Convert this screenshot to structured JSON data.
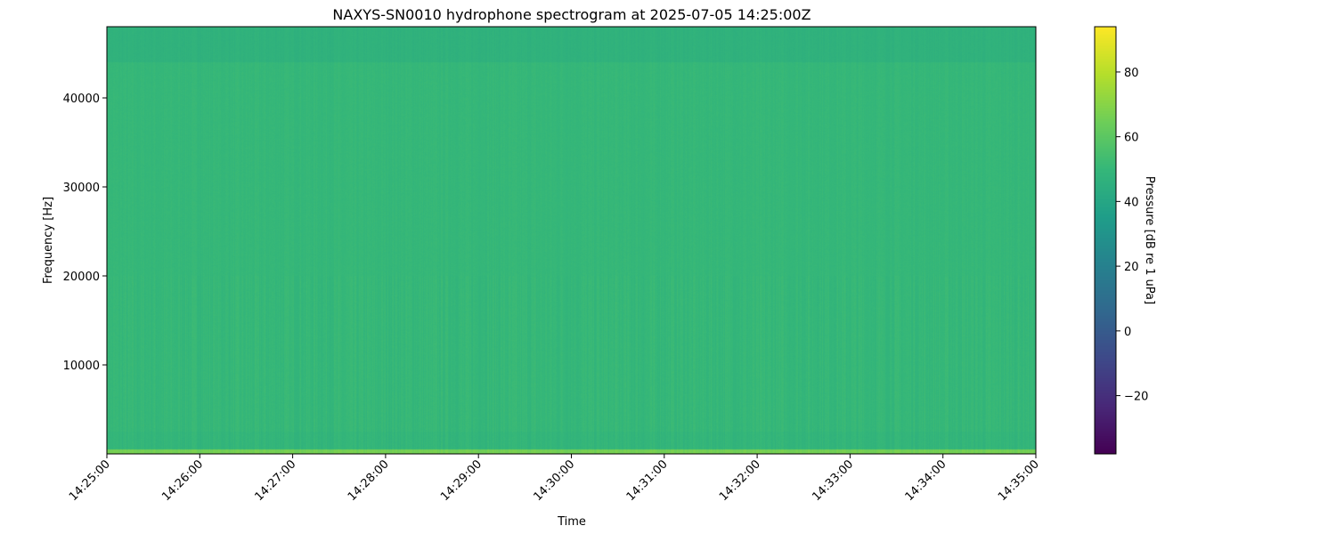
{
  "chart_data": {
    "type": "heatmap",
    "title": "NAXYS-SN0010 hydrophone spectrogram at 2025-07-05 14:25:00Z",
    "xlabel": "Time",
    "ylabel": "Frequency [Hz]",
    "x_ticks": [
      "14:25:00",
      "14:26:00",
      "14:27:00",
      "14:28:00",
      "14:29:00",
      "14:30:00",
      "14:31:00",
      "14:32:00",
      "14:33:00",
      "14:34:00",
      "14:35:00"
    ],
    "y_ticks": [
      10000,
      20000,
      30000,
      40000
    ],
    "ylim": [
      0,
      48000
    ],
    "colormap": "viridis",
    "colorbar": {
      "label": "Pressure [dB re 1 uPa]",
      "range": [
        -38,
        94
      ],
      "ticks": [
        -20,
        0,
        20,
        40,
        60,
        80
      ]
    },
    "approx_levels_db": [
      {
        "freq_range_hz": [
          0,
          500
        ],
        "level": 66
      },
      {
        "freq_range_hz": [
          500,
          2500
        ],
        "level": 49
      },
      {
        "freq_range_hz": [
          2500,
          44000
        ],
        "level": 50
      },
      {
        "freq_range_hz": [
          44000,
          48000
        ],
        "level": 47
      }
    ],
    "grid": false
  }
}
